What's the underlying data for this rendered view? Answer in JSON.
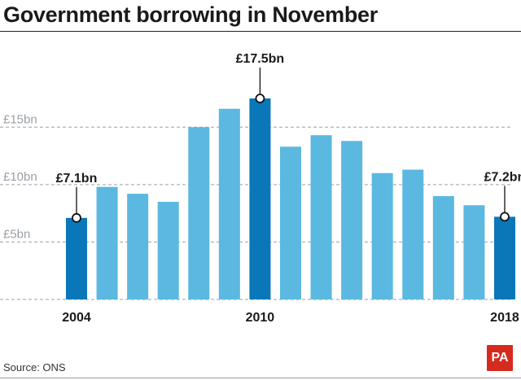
{
  "title": "Government borrowing in November",
  "source": "Source: ONS",
  "logo": "PA",
  "colors": {
    "bar": "#5bb8e0",
    "highlight": "#0a77b8",
    "grid": "#9aa0a6",
    "ytick": "#9aa0a6",
    "text": "#1a1a1a"
  },
  "chart_data": {
    "type": "bar",
    "categories": [
      "2004",
      "2005",
      "2006",
      "2007",
      "2008",
      "2009",
      "2010",
      "2011",
      "2012",
      "2013",
      "2014",
      "2015",
      "2016",
      "2017",
      "2018"
    ],
    "values": [
      7.1,
      9.8,
      9.2,
      8.5,
      15.0,
      16.6,
      17.5,
      13.3,
      14.3,
      13.8,
      11.0,
      11.3,
      9.0,
      8.2,
      7.2
    ],
    "highlight": [
      0,
      6,
      14
    ],
    "ylim": [
      0,
      17.5
    ],
    "yticks": [
      {
        "value": 5,
        "label": "£5bn"
      },
      {
        "value": 10,
        "label": "£10bn"
      },
      {
        "value": 15,
        "label": "£15bn"
      }
    ],
    "xtick_labels": [
      {
        "index": 0,
        "label": "2004"
      },
      {
        "index": 6,
        "label": "2010"
      },
      {
        "index": 14,
        "label": "2018"
      }
    ],
    "annotations": [
      {
        "index": 0,
        "label": "£7.1bn"
      },
      {
        "index": 6,
        "label": "£17.5bn"
      },
      {
        "index": 14,
        "label": "£7.2bn"
      }
    ],
    "grid": true,
    "xlabel": "",
    "ylabel": ""
  }
}
